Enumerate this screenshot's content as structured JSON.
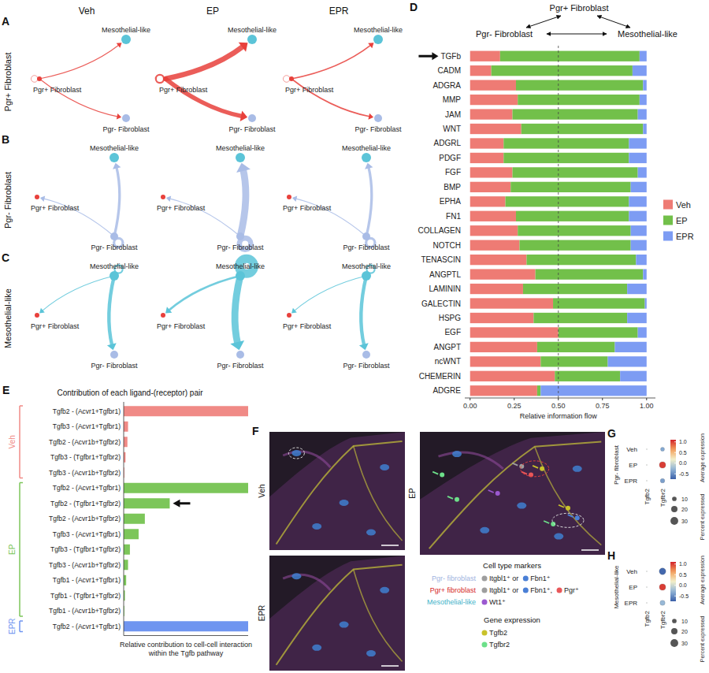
{
  "network": {
    "columns": [
      "Veh",
      "EP",
      "EPR"
    ],
    "nodes": [
      {
        "label": "Pgr+ Fibroblast",
        "color": "#e8413c"
      },
      {
        "label": "Pgr- Fibroblast",
        "color": "#a9bce6"
      },
      {
        "label": "Mesothelial-like",
        "color": "#5bc4d8"
      }
    ],
    "rows": [
      {
        "panel": "A",
        "title": "Pgr+ Fibroblast",
        "edges": [
          {
            "target": "Mesothelial-like",
            "weight": [
              1,
              6,
              1.5
            ]
          },
          {
            "target": "Pgr- Fibroblast",
            "weight": [
              1,
              5,
              1.5
            ]
          },
          {
            "target": "Pgr+ Fibroblast",
            "weight": [
              0.5,
              2,
              0.5
            ]
          }
        ]
      },
      {
        "panel": "B",
        "title": "Pgr- Fibroblast",
        "edges": [
          {
            "target": "Mesothelial-like",
            "weight": [
              3,
              8,
              3
            ]
          },
          {
            "target": "Pgr+ Fibroblast",
            "weight": [
              1,
              1,
              1
            ]
          },
          {
            "target": "Pgr- Fibroblast",
            "weight": [
              3,
              6,
              3
            ]
          }
        ]
      },
      {
        "panel": "C",
        "title": "Mesothelial-like",
        "edges": [
          {
            "target": "Pgr- Fibroblast",
            "weight": [
              4,
              8,
              4
            ]
          },
          {
            "target": "Pgr+ Fibroblast",
            "weight": [
              1,
              2.5,
              1
            ]
          },
          {
            "target": "Mesothelial-like",
            "weight": [
              2,
              10,
              2
            ]
          }
        ]
      }
    ]
  },
  "chart_data": [
    {
      "panel": "D",
      "type": "bar",
      "orientation": "horizontal",
      "stacked": true,
      "annotations": [
        "Pgr+ Fibroblast",
        "Pgr- Fibroblast",
        "Mesothelial-like"
      ],
      "x_label": "Relative information flow",
      "categories": [
        "TGFb",
        "CADM",
        "ADGRA",
        "MMP",
        "JAM",
        "WNT",
        "ADGRL",
        "PDGF",
        "FGF",
        "BMP",
        "EPHA",
        "FN1",
        "COLLAGEN",
        "NOTCH",
        "TENASCIN",
        "ANGPTL",
        "LAMININ",
        "GALECTIN",
        "HSPG",
        "EGF",
        "ANGPT",
        "ncWNT",
        "CHEMERIN",
        "ADGRE"
      ],
      "series": [
        {
          "name": "Veh",
          "color": "#ee7b74",
          "values": [
            0.17,
            0.12,
            0.26,
            0.27,
            0.24,
            0.29,
            0.19,
            0.19,
            0.24,
            0.23,
            0.2,
            0.26,
            0.27,
            0.28,
            0.32,
            0.37,
            0.3,
            0.47,
            0.36,
            0.5,
            0.38,
            0.4,
            0.48,
            0.38
          ]
        },
        {
          "name": "EP",
          "color": "#72c04a",
          "values": [
            0.79,
            0.8,
            0.72,
            0.69,
            0.71,
            0.69,
            0.71,
            0.71,
            0.71,
            0.68,
            0.7,
            0.64,
            0.64,
            0.63,
            0.62,
            0.61,
            0.59,
            0.52,
            0.53,
            0.45,
            0.44,
            0.38,
            0.37,
            0.02
          ]
        },
        {
          "name": "EPR",
          "color": "#7d9cf3",
          "values": [
            0.04,
            0.08,
            0.02,
            0.04,
            0.05,
            0.02,
            0.1,
            0.1,
            0.05,
            0.09,
            0.1,
            0.1,
            0.09,
            0.09,
            0.06,
            0.02,
            0.11,
            0.01,
            0.11,
            0.05,
            0.18,
            0.22,
            0.15,
            0.6
          ]
        }
      ],
      "xlim": [
        -0.03,
        1.05
      ],
      "xticks": [
        {
          "value": 0,
          "label": "0.00"
        },
        {
          "value": 0.25,
          "label": "0.25"
        },
        {
          "value": 0.5,
          "label": "0.50"
        },
        {
          "value": 0.75,
          "label": "0.75"
        },
        {
          "value": 1,
          "label": "1.00"
        }
      ],
      "reference_line": 0.5,
      "highlight": "TGFb",
      "legend": "right"
    },
    {
      "panel": "E",
      "type": "bar",
      "orientation": "horizontal",
      "title": "Contribution of each ligand-(receptor) pair",
      "x_label": "Relative contribution to cell-cell interaction within the Tgfb pathway",
      "series": [
        {
          "name": "Veh",
          "color": "#f08a86",
          "categories": [
            "Tgfb2 - (Acvr1+Tgfbr1)",
            "Tgfb3 - (Acvr1+Tgfbr1)",
            "Tgfb2 - (Acvr1b+Tgfbr2)",
            "Tgfb3 - (Tgfbr1+Tgfbr2)",
            "Tgfb3 - (Acvr1b+Tgfbr2)"
          ],
          "values": [
            1.0,
            0.035,
            0.03,
            0.015,
            0.005
          ]
        },
        {
          "name": "EP",
          "color": "#7cc65a",
          "categories": [
            "Tgfb2 - (Acvr1+Tgfbr1)",
            "Tgfb2 - (Tgfbr1+Tgfbr2)",
            "Tgfb2 - (Acvr1b+Tgfbr2)",
            "Tgfb3 - (Acvr1+Tgfbr1)",
            "Tgfb3 - (Tgfbr1+Tgfbr2)",
            "Tgfb3 - (Acvr1b+Tgfbr2)",
            "Tgfb1 - (Acvr1+Tgfbr1)",
            "Tgfb1 - (Tgfbr1+Tgfbr2)",
            "Tgfb1 - (Acvr1b+Tgfbr2)"
          ],
          "values": [
            1.0,
            0.37,
            0.17,
            0.12,
            0.05,
            0.035,
            0.02,
            0.01,
            0.005
          ]
        },
        {
          "name": "EPR",
          "color": "#6f95f0",
          "categories": [
            "Tgfb2 - (Acvr1+Tgfbr1)"
          ],
          "values": [
            1.0
          ]
        }
      ],
      "xlim": [
        0,
        1
      ],
      "tick_labels": false
    },
    {
      "panel": "G",
      "type": "dot",
      "y_label": "Pgr- fibroblast",
      "rows": [
        "Veh",
        "EP",
        "EPR"
      ],
      "columns": [
        "Tgfb2",
        "Tgfbr2"
      ],
      "avg_expression": [
        [
          0,
          -0.35
        ],
        [
          0,
          1.0
        ],
        [
          0,
          -0.4
        ]
      ],
      "percent_expressed": [
        [
          0.3,
          8
        ],
        [
          0.3,
          20
        ],
        [
          0.3,
          10
        ]
      ],
      "color_title": "Average expression",
      "color_range": [
        -0.75,
        1.1
      ],
      "color_ticks": [
        {
          "value": 1,
          "label": "1.0"
        },
        0.5,
        {
          "value": 0,
          "label": "0.0"
        },
        -0.5
      ],
      "size_title": "Percent expressed",
      "size_ticks": [
        10,
        20,
        30
      ]
    },
    {
      "panel": "H",
      "type": "dot",
      "y_label": "Mesothelial-like",
      "rows": [
        "Veh",
        "EP",
        "EPR"
      ],
      "columns": [
        "Tgfb2",
        "Tgfbr2"
      ],
      "avg_expression": [
        [
          0,
          -0.7
        ],
        [
          0,
          1.0
        ],
        [
          0,
          -0.25
        ]
      ],
      "percent_expressed": [
        [
          0.3,
          22
        ],
        [
          0.3,
          20
        ],
        [
          0.3,
          13
        ]
      ],
      "color_title": "Average expression",
      "color_range": [
        -0.75,
        1.1
      ],
      "color_ticks": [
        {
          "value": 1,
          "label": "1.0"
        },
        0.5,
        {
          "value": 0,
          "label": "0.0"
        },
        -0.5
      ],
      "size_title": "Percent expressed",
      "size_ticks": [
        10,
        20,
        30
      ]
    }
  ],
  "images": {
    "panel": "F",
    "conditions": [
      "Veh",
      "EP",
      "EPR"
    ],
    "key": {
      "cell_title": "Cell type markers",
      "cell_types": [
        {
          "label": "Pgr- fibroblast",
          "color": "#9fb3e0",
          "items": [
            {
              "text": "Itgbl1⁺ or",
              "color": "#9e9e9e"
            },
            {
              "text": "Fbn1⁺",
              "color": "#4a7fd6"
            }
          ]
        },
        {
          "label": "Pgr+ fibroblast",
          "color": "#d62828",
          "items": [
            {
              "text": "Itgbl1⁺ or",
              "color": "#9e9e9e"
            },
            {
              "text": "Fbn1⁺,",
              "color": "#4a7fd6"
            },
            {
              "text": "Pgr⁺",
              "color": "#e8575a"
            }
          ]
        },
        {
          "label": "Mesothelial-like",
          "color": "#3fb3c9",
          "items": [
            {
              "text": "Wt1⁺",
              "color": "#9b59d0"
            }
          ]
        }
      ],
      "gene_title": "Gene expression",
      "genes": [
        {
          "label": "Tgfb2",
          "color": "#c9c22a"
        },
        {
          "label": "Tgfbr2",
          "color": "#6de08a"
        }
      ]
    }
  }
}
